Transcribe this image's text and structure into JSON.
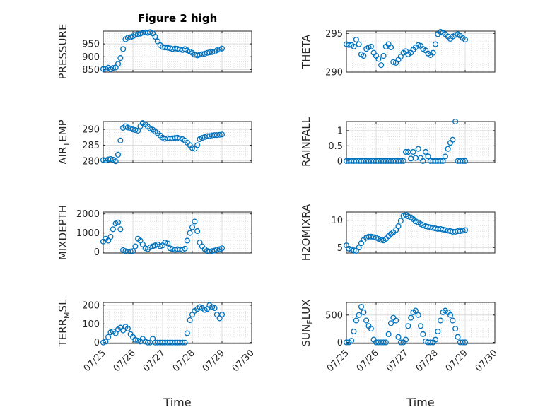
{
  "figure": {
    "title": "Figure 2 high",
    "xlabel": "Time",
    "marker_color": "#0072BD",
    "grid_color": "#dcdcdc",
    "xticks": [
      "07/25",
      "07/26",
      "07/27",
      "07/28",
      "07/29",
      "07/30"
    ]
  },
  "chart_data": [
    {
      "type": "scatter",
      "ylabel": "PRESSURE",
      "ylim": [
        840,
        1000
      ],
      "yticks": [
        850,
        900,
        950
      ],
      "grid": true,
      "x": [
        0.0,
        0.08,
        0.17,
        0.25,
        0.33,
        0.42,
        0.5,
        0.58,
        0.67,
        0.75,
        0.83,
        0.92,
        1.0,
        1.08,
        1.17,
        1.25,
        1.33,
        1.42,
        1.5,
        1.58,
        1.67,
        1.75,
        1.83,
        1.92,
        2.0,
        2.08,
        2.17,
        2.25,
        2.33,
        2.42,
        2.5,
        2.58,
        2.67,
        2.75,
        2.83,
        2.92,
        3.0,
        3.08,
        3.17,
        3.25,
        3.33,
        3.42,
        3.5,
        3.58,
        3.67,
        3.75,
        3.83,
        3.92,
        4.0
      ],
      "y": [
        852,
        853,
        857,
        851,
        856,
        858,
        872,
        895,
        930,
        968,
        974,
        976,
        980,
        985,
        988,
        990,
        994,
        995,
        993,
        996,
        991,
        978,
        960,
        945,
        938,
        936,
        935,
        933,
        930,
        932,
        931,
        928,
        926,
        930,
        925,
        920,
        915,
        908,
        905,
        908,
        910,
        912,
        915,
        917,
        918,
        920,
        925,
        928,
        932
      ]
    },
    {
      "type": "scatter",
      "ylabel": "THETA",
      "ylim": [
        290,
        295.3
      ],
      "yticks": [
        290,
        295
      ],
      "grid": true,
      "x": [
        0.0,
        0.08,
        0.17,
        0.25,
        0.33,
        0.42,
        0.5,
        0.58,
        0.67,
        0.75,
        0.83,
        0.92,
        1.0,
        1.08,
        1.17,
        1.25,
        1.33,
        1.42,
        1.5,
        1.58,
        1.67,
        1.75,
        1.83,
        1.92,
        2.0,
        2.08,
        2.17,
        2.25,
        2.33,
        2.42,
        2.5,
        2.58,
        2.67,
        2.75,
        2.83,
        2.92,
        3.0,
        3.08,
        3.17,
        3.25,
        3.33,
        3.42,
        3.5,
        3.58,
        3.67,
        3.75,
        3.83,
        3.92,
        4.0
      ],
      "y": [
        293.6,
        293.5,
        293.5,
        293.3,
        294.2,
        293.6,
        292.3,
        292.1,
        293.0,
        293.2,
        293.3,
        292.5,
        292.1,
        291.7,
        290.9,
        292.1,
        293.3,
        293.6,
        293.2,
        291.3,
        291.2,
        291.6,
        292.0,
        292.5,
        292.7,
        292.3,
        292.5,
        292.9,
        293.2,
        293.5,
        293.4,
        293.0,
        292.8,
        292.4,
        292.2,
        292.5,
        293.6,
        294.9,
        295.2,
        295.1,
        294.9,
        294.6,
        294.3,
        294.6,
        294.8,
        294.9,
        294.7,
        294.4,
        294.2
      ]
    },
    {
      "type": "scatter",
      "ylabel": "AIR_TEMP",
      "ylim": [
        279.5,
        292.5
      ],
      "yticks": [
        280,
        285,
        290
      ],
      "grid": true,
      "x": [
        0.0,
        0.08,
        0.17,
        0.25,
        0.33,
        0.42,
        0.5,
        0.58,
        0.67,
        0.75,
        0.83,
        0.92,
        1.0,
        1.08,
        1.17,
        1.25,
        1.33,
        1.42,
        1.5,
        1.58,
        1.67,
        1.75,
        1.83,
        1.92,
        2.0,
        2.08,
        2.17,
        2.25,
        2.33,
        2.42,
        2.5,
        2.58,
        2.67,
        2.75,
        2.83,
        2.92,
        3.0,
        3.08,
        3.17,
        3.25,
        3.33,
        3.42,
        3.5,
        3.58,
        3.67,
        3.75,
        3.83,
        3.92,
        4.0
      ],
      "y": [
        280.3,
        280.2,
        280.5,
        280.6,
        280.4,
        279.9,
        282.0,
        286.5,
        290.5,
        291.0,
        290.6,
        290.3,
        290.0,
        289.8,
        289.6,
        291.0,
        292.0,
        291.6,
        290.9,
        290.3,
        289.9,
        289.3,
        288.8,
        288.1,
        287.4,
        287.0,
        287.2,
        287.1,
        287.2,
        287.3,
        287.4,
        287.1,
        286.9,
        286.5,
        285.8,
        285.0,
        284.1,
        283.9,
        285.0,
        286.9,
        287.3,
        287.6,
        287.9,
        287.9,
        288.1,
        288.2,
        288.2,
        288.3,
        288.4
      ]
    },
    {
      "type": "scatter",
      "ylabel": "RAINFALL",
      "ylim": [
        -0.05,
        1.3
      ],
      "yticks": [
        0,
        0.5,
        1
      ],
      "grid": true,
      "x": [
        0.0,
        0.08,
        0.17,
        0.25,
        0.33,
        0.42,
        0.5,
        0.58,
        0.67,
        0.75,
        0.83,
        0.92,
        1.0,
        1.08,
        1.17,
        1.25,
        1.33,
        1.42,
        1.5,
        1.58,
        1.67,
        1.75,
        1.83,
        1.92,
        2.0,
        2.08,
        2.17,
        2.25,
        2.33,
        2.42,
        2.5,
        2.58,
        2.67,
        2.75,
        2.83,
        2.92,
        3.0,
        3.08,
        3.17,
        3.25,
        3.33,
        3.42,
        3.5,
        3.58,
        3.67,
        3.75,
        3.83,
        3.92,
        4.0
      ],
      "y": [
        0,
        0,
        0,
        0,
        0,
        0,
        0,
        0,
        0,
        0,
        0,
        0,
        0,
        0,
        0,
        0,
        0,
        0,
        0,
        0,
        0,
        0,
        0,
        0,
        0.3,
        0.3,
        0.08,
        0.3,
        0.1,
        0.4,
        0.1,
        0,
        0.3,
        0.15,
        0,
        0,
        0,
        0,
        0,
        0,
        0.15,
        0.4,
        0.6,
        0.7,
        1.3,
        0,
        0,
        0,
        0
      ]
    },
    {
      "type": "scatter",
      "ylabel": "MIXDEPTH",
      "ylim": [
        -50,
        2100
      ],
      "yticks": [
        0,
        1000,
        2000
      ],
      "grid": true,
      "x": [
        0.0,
        0.08,
        0.17,
        0.25,
        0.33,
        0.42,
        0.5,
        0.58,
        0.67,
        0.75,
        0.83,
        0.92,
        1.0,
        1.08,
        1.17,
        1.25,
        1.33,
        1.42,
        1.5,
        1.58,
        1.67,
        1.75,
        1.83,
        1.92,
        2.0,
        2.08,
        2.17,
        2.25,
        2.33,
        2.42,
        2.5,
        2.58,
        2.67,
        2.75,
        2.83,
        2.92,
        3.0,
        3.08,
        3.17,
        3.25,
        3.33,
        3.42,
        3.5,
        3.58,
        3.67,
        3.75,
        3.83,
        3.92,
        4.0
      ],
      "y": [
        550,
        700,
        600,
        800,
        1200,
        1500,
        1550,
        1200,
        100,
        50,
        20,
        30,
        50,
        300,
        700,
        600,
        400,
        200,
        150,
        250,
        300,
        350,
        400,
        300,
        350,
        500,
        450,
        200,
        150,
        120,
        150,
        130,
        120,
        180,
        600,
        1000,
        1300,
        1600,
        1100,
        500,
        300,
        150,
        60,
        20,
        50,
        80,
        120,
        150,
        200
      ]
    },
    {
      "type": "scatter",
      "ylabel": "H2OMIXRA",
      "ylim": [
        4,
        11.5
      ],
      "yticks": [
        5,
        10
      ],
      "grid": true,
      "x": [
        0.0,
        0.08,
        0.17,
        0.25,
        0.33,
        0.42,
        0.5,
        0.58,
        0.67,
        0.75,
        0.83,
        0.92,
        1.0,
        1.08,
        1.17,
        1.25,
        1.33,
        1.42,
        1.5,
        1.58,
        1.67,
        1.75,
        1.83,
        1.92,
        2.0,
        2.08,
        2.17,
        2.25,
        2.33,
        2.42,
        2.5,
        2.58,
        2.67,
        2.75,
        2.83,
        2.92,
        3.0,
        3.08,
        3.17,
        3.25,
        3.33,
        3.42,
        3.5,
        3.58,
        3.67,
        3.75,
        3.83,
        3.92,
        4.0
      ],
      "y": [
        5.4,
        4.8,
        4.6,
        4.5,
        4.4,
        5.0,
        5.8,
        6.4,
        6.8,
        7.0,
        7.0,
        6.9,
        6.8,
        6.6,
        6.4,
        6.3,
        6.6,
        7.1,
        7.5,
        7.8,
        8.2,
        8.9,
        9.9,
        10.8,
        11.0,
        10.7,
        10.5,
        10.2,
        9.8,
        9.6,
        9.3,
        9.1,
        8.9,
        8.8,
        8.7,
        8.6,
        8.5,
        8.4,
        8.4,
        8.3,
        8.2,
        8.1,
        8.0,
        7.9,
        7.9,
        8.0,
        8.0,
        8.1,
        8.2
      ]
    },
    {
      "type": "scatter",
      "ylabel": "TERR_MSL",
      "ylim": [
        -5,
        215
      ],
      "yticks": [
        0,
        100,
        200
      ],
      "grid": true,
      "x": [
        0.0,
        0.08,
        0.17,
        0.25,
        0.33,
        0.42,
        0.5,
        0.58,
        0.67,
        0.75,
        0.83,
        0.92,
        1.0,
        1.08,
        1.17,
        1.25,
        1.33,
        1.42,
        1.5,
        1.58,
        1.67,
        1.75,
        1.83,
        1.92,
        2.0,
        2.08,
        2.17,
        2.25,
        2.33,
        2.42,
        2.5,
        2.58,
        2.67,
        2.75,
        2.83,
        2.92,
        3.0,
        3.08,
        3.17,
        3.25,
        3.33,
        3.42,
        3.5,
        3.58,
        3.67,
        3.75,
        3.83,
        3.92,
        4.0
      ],
      "y": [
        0,
        5,
        30,
        55,
        60,
        50,
        70,
        80,
        65,
        85,
        75,
        45,
        30,
        15,
        10,
        5,
        20,
        5,
        0,
        0,
        20,
        0,
        0,
        0,
        0,
        0,
        0,
        0,
        0,
        0,
        0,
        0,
        0,
        0,
        50,
        120,
        150,
        170,
        180,
        190,
        185,
        175,
        180,
        200,
        190,
        185,
        150,
        130,
        150
      ]
    },
    {
      "type": "scatter",
      "ylabel": "SUN_FLUX",
      "ylim": [
        -20,
        730
      ],
      "yticks": [
        0,
        500
      ],
      "grid": true,
      "x": [
        0.0,
        0.08,
        0.17,
        0.25,
        0.33,
        0.42,
        0.5,
        0.58,
        0.67,
        0.75,
        0.83,
        0.92,
        1.0,
        1.08,
        1.17,
        1.25,
        1.33,
        1.42,
        1.5,
        1.58,
        1.67,
        1.75,
        1.83,
        1.92,
        2.0,
        2.08,
        2.17,
        2.25,
        2.33,
        2.42,
        2.5,
        2.58,
        2.67,
        2.75,
        2.83,
        2.92,
        3.0,
        3.08,
        3.17,
        3.25,
        3.33,
        3.42,
        3.5,
        3.58,
        3.67,
        3.75,
        3.83,
        3.92,
        4.0
      ],
      "y": [
        0,
        0,
        30,
        200,
        400,
        500,
        650,
        550,
        400,
        300,
        250,
        50,
        0,
        0,
        0,
        0,
        0,
        150,
        350,
        450,
        400,
        100,
        0,
        0,
        50,
        300,
        450,
        550,
        580,
        500,
        300,
        150,
        20,
        0,
        0,
        0,
        50,
        200,
        400,
        550,
        580,
        550,
        500,
        400,
        250,
        100,
        0,
        0,
        0
      ]
    }
  ]
}
